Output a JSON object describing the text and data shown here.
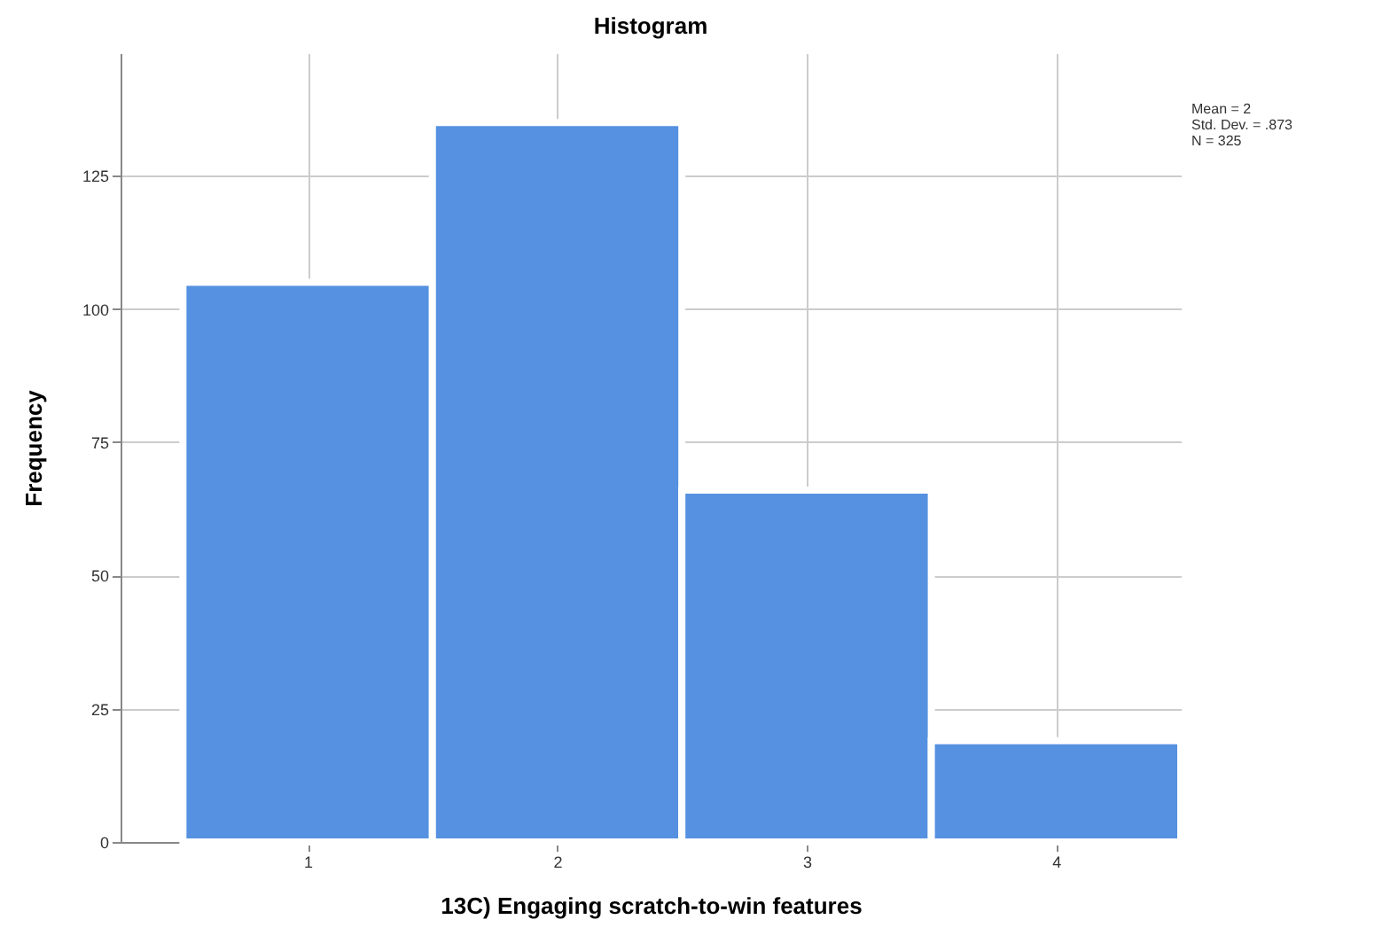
{
  "chart_data": {
    "type": "histogram",
    "title": "Histogram",
    "xlabel": "13C) Engaging scratch-to-win features",
    "ylabel": "Frequency",
    "bins": [
      0.5,
      1.5,
      2.5,
      3.5,
      4.5
    ],
    "values": [
      105,
      135,
      66,
      19
    ],
    "color": "#5591e0",
    "xlim": [
      0.25,
      4.5
    ],
    "xticks": [
      1,
      2,
      3,
      4
    ],
    "ylim": [
      0,
      148
    ],
    "yticks": [
      0,
      25,
      50,
      75,
      100,
      125
    ],
    "grid": true,
    "annotations": [
      "Mean = 2",
      "Std. Dev. = .873",
      "N = 325"
    ]
  }
}
